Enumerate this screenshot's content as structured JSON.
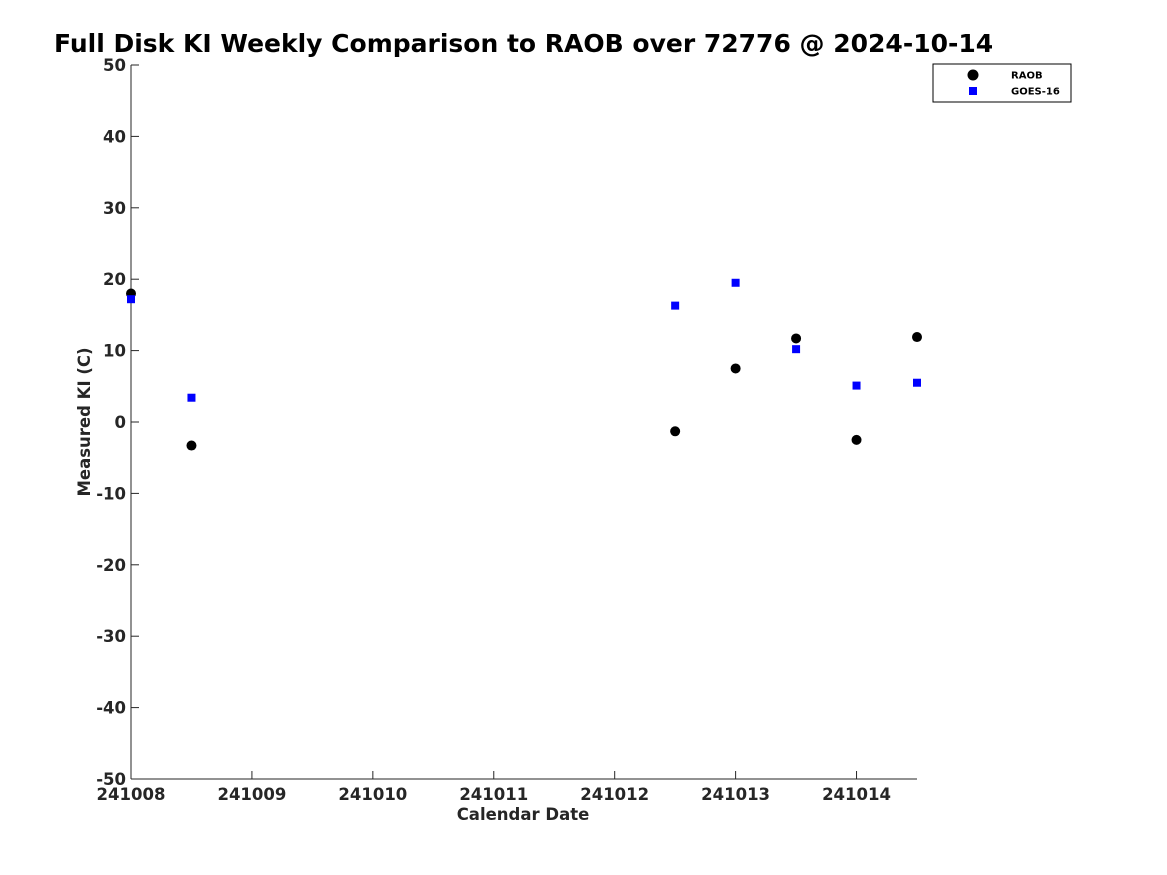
{
  "chart_data": {
    "type": "scatter",
    "title": "Full Disk KI Weekly Comparison to RAOB over 72776 @ 2024-10-14",
    "xlabel": "Calendar Date",
    "ylabel": "Measured KI (C)",
    "ylim": [
      -50,
      50
    ],
    "yticks": [
      -50,
      -40,
      -30,
      -20,
      -10,
      0,
      10,
      20,
      30,
      40,
      50
    ],
    "xlim": [
      0,
      6.5
    ],
    "xticks": [
      {
        "value": 0,
        "label": "241008"
      },
      {
        "value": 1,
        "label": "241009"
      },
      {
        "value": 2,
        "label": "241010"
      },
      {
        "value": 3,
        "label": "241011"
      },
      {
        "value": 4,
        "label": "241012"
      },
      {
        "value": 5,
        "label": "241013"
      },
      {
        "value": 6,
        "label": "241014"
      }
    ],
    "x_units": "days after 241008",
    "grid": false,
    "legend_position": "top-right",
    "series": [
      {
        "name": "RAOB",
        "marker": "circle",
        "color": "#000000",
        "points": [
          {
            "x": 0.0,
            "y": 18.0
          },
          {
            "x": 0.5,
            "y": -3.3
          },
          {
            "x": 4.5,
            "y": -1.3
          },
          {
            "x": 5.0,
            "y": 7.5
          },
          {
            "x": 5.5,
            "y": 11.7
          },
          {
            "x": 6.0,
            "y": -2.5
          },
          {
            "x": 6.5,
            "y": 11.9
          }
        ]
      },
      {
        "name": "GOES-16",
        "marker": "square",
        "color": "#0000ff",
        "points": [
          {
            "x": 0.0,
            "y": 17.2
          },
          {
            "x": 0.5,
            "y": 3.4
          },
          {
            "x": 4.5,
            "y": 16.3
          },
          {
            "x": 5.0,
            "y": 19.5
          },
          {
            "x": 5.5,
            "y": 10.2
          },
          {
            "x": 6.0,
            "y": 5.1
          },
          {
            "x": 6.5,
            "y": 5.5
          }
        ]
      }
    ]
  }
}
